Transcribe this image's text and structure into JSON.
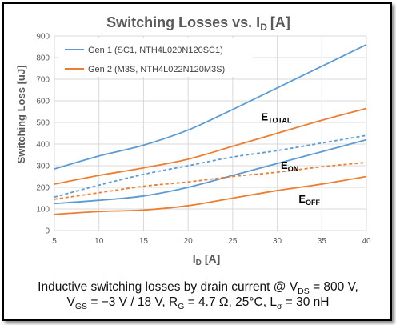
{
  "chart_data": {
    "type": "line",
    "title": "Switching Losses vs. ID [A]",
    "title_main": "Switching Losses vs. I",
    "title_sub": "D",
    "title_unit": "[A]",
    "xlabel_main": "I",
    "xlabel_sub": "D",
    "xlabel_unit": "[A]",
    "ylabel": "Switching Loss [uJ]",
    "xlim": [
      5,
      40
    ],
    "ylim": [
      0,
      900
    ],
    "x_ticks": [
      5,
      10,
      15,
      20,
      25,
      30,
      35,
      40
    ],
    "y_ticks": [
      0,
      100,
      200,
      300,
      400,
      500,
      600,
      700,
      800,
      900
    ],
    "grid": true,
    "legend_position": "top-left",
    "x": [
      5,
      10,
      15,
      20,
      25,
      30,
      35,
      40
    ],
    "series": [
      {
        "name": "Gen 1 (SC1, NTH4L020N120SC1)",
        "group": "Gen 1",
        "metric": "E_TOTAL",
        "style": "solid",
        "color": "#5b9bd5",
        "values": [
          285,
          345,
          395,
          465,
          560,
          660,
          760,
          860
        ]
      },
      {
        "name": "Gen 1 (SC1, NTH4L020N120SC1)",
        "group": "Gen 1",
        "metric": "E_ON",
        "style": "dashed",
        "color": "#5b9bd5",
        "values": [
          155,
          210,
          260,
          300,
          340,
          370,
          405,
          440
        ]
      },
      {
        "name": "Gen 1 (SC1, NTH4L020N120SC1)",
        "group": "Gen 1",
        "metric": "E_OFF",
        "style": "solid",
        "color": "#5b9bd5",
        "values": [
          125,
          140,
          160,
          200,
          255,
          310,
          365,
          420
        ]
      },
      {
        "name": "Gen 2 (M3S, NTH4L022N120M3S)",
        "group": "Gen 2",
        "metric": "E_TOTAL",
        "style": "solid",
        "color": "#ed7d31",
        "values": [
          215,
          255,
          290,
          330,
          390,
          450,
          510,
          565
        ]
      },
      {
        "name": "Gen 2 (M3S, NTH4L022N120M3S)",
        "group": "Gen 2",
        "metric": "E_ON",
        "style": "dashed",
        "color": "#ed7d31",
        "values": [
          145,
          175,
          205,
          225,
          250,
          270,
          295,
          315
        ]
      },
      {
        "name": "Gen 2 (M3S, NTH4L022N120M3S)",
        "group": "Gen 2",
        "metric": "E_OFF",
        "style": "solid",
        "color": "#ed7d31",
        "values": [
          75,
          88,
          95,
          115,
          150,
          185,
          215,
          250
        ]
      }
    ],
    "legend": [
      {
        "label": "Gen 1 (SC1, NTH4L020N120SC1)",
        "color": "#5b9bd5"
      },
      {
        "label": "Gen 2 (M3S, NTH4L022N120M3S)",
        "color": "#ed7d31"
      }
    ],
    "annotations": [
      {
        "main": "E",
        "sub": "TOTAL",
        "x": 28.2,
        "y": 510
      },
      {
        "main": "E",
        "sub": "ON",
        "x": 30.4,
        "y": 285
      },
      {
        "main": "E",
        "sub": "OFF",
        "x": 32.4,
        "y": 130
      }
    ]
  },
  "caption": {
    "line1_prefix": "Inductive switching losses by drain current @ V",
    "line1_sub": "DS",
    "line1_suffix": " = 800 V,",
    "line2_v": "V",
    "line2_v_sub": "GS",
    "line2_mid1": " = −3 V / 18 V, R",
    "line2_r_sub": "G",
    "line2_mid2": " = 4.7 Ω, 25°C, L",
    "line2_l_sub": "σ",
    "line2_end": " = 30 nH"
  }
}
